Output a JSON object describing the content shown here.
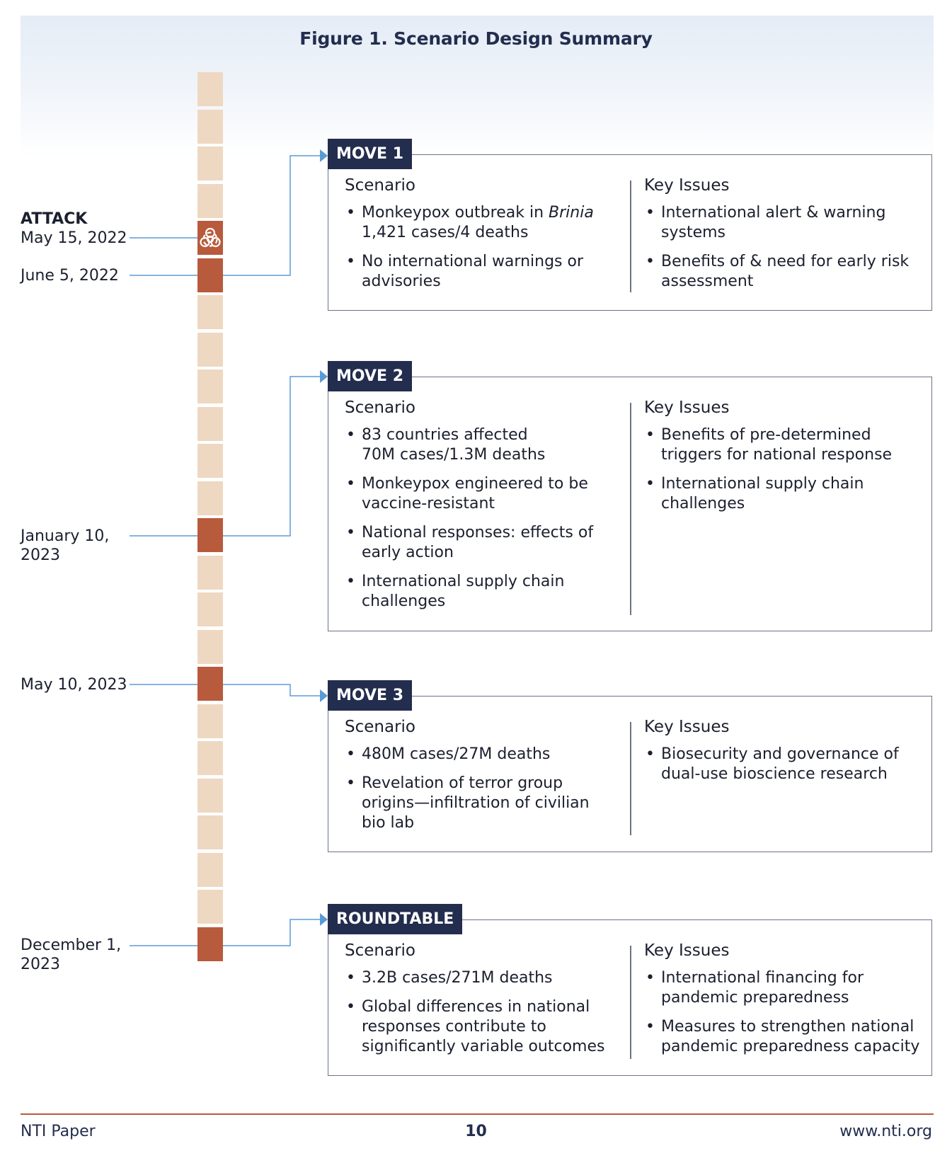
{
  "figure": {
    "title": "Figure 1. Scenario Design Summary"
  },
  "timeline": {
    "events": [
      {
        "label_line1": "ATTACK",
        "label_line2": "May 15, 2022"
      },
      {
        "label_line1": "June 5, 2022",
        "label_line2": ""
      },
      {
        "label_line1": "January 10,",
        "label_line2": "2023"
      },
      {
        "label_line1": "May 10, 2023",
        "label_line2": ""
      },
      {
        "label_line1": "December 1,",
        "label_line2": "2023"
      }
    ],
    "attack_icon": "biohazard-icon",
    "colors": {
      "segment": "#eed8c2",
      "active": "#b85a3c",
      "connector": "#5b9bd5"
    }
  },
  "moves": [
    {
      "tag": "MOVE 1",
      "scenario_heading": "Scenario",
      "scenario": [
        {
          "pre": "Monkeypox outbreak in ",
          "em": "Brinia",
          "rest": "1,421 cases/4 deaths"
        },
        {
          "pre": "No international warnings or",
          "em": "",
          "rest": "advisories"
        }
      ],
      "issues_heading": "Key Issues",
      "issues": [
        {
          "line1": "International alert & warning",
          "line2": "systems"
        },
        {
          "line1": "Benefits of & need for early risk",
          "line2": "assessment"
        }
      ]
    },
    {
      "tag": "MOVE 2",
      "scenario_heading": "Scenario",
      "scenario": [
        {
          "pre": "83 countries affected",
          "em": "",
          "rest": "70M cases/1.3M deaths"
        },
        {
          "pre": "Monkeypox engineered to be",
          "em": "",
          "rest": "vaccine-resistant"
        },
        {
          "pre": "National responses: effects of",
          "em": "",
          "rest": "early action"
        },
        {
          "pre": "International supply chain",
          "em": "",
          "rest": "challenges"
        }
      ],
      "issues_heading": "Key Issues",
      "issues": [
        {
          "line1": "Benefits of pre-determined",
          "line2": "triggers for national response"
        },
        {
          "line1": "International supply chain",
          "line2": "challenges"
        }
      ]
    },
    {
      "tag": "MOVE 3",
      "scenario_heading": "Scenario",
      "scenario": [
        {
          "pre": "480M cases/27M deaths",
          "em": "",
          "rest": ""
        },
        {
          "pre": "Revelation of terror group",
          "em": "",
          "rest": "origins—infiltration of civilian",
          "rest2": "bio lab"
        }
      ],
      "issues_heading": "Key Issues",
      "issues": [
        {
          "line1": "Biosecurity and governance of",
          "line2": "dual-use bioscience research"
        }
      ]
    },
    {
      "tag": "ROUNDTABLE",
      "scenario_heading": "Scenario",
      "scenario": [
        {
          "pre": "3.2B cases/271M deaths",
          "em": "",
          "rest": ""
        },
        {
          "pre": "Global differences in national",
          "em": "",
          "rest": "responses contribute to",
          "rest2": "significantly variable outcomes"
        }
      ],
      "issues_heading": "Key Issues",
      "issues": [
        {
          "line1": "International financing for",
          "line2": "pandemic preparedness"
        },
        {
          "line1": "Measures to strengthen national",
          "line2": "pandemic preparedness capacity"
        }
      ]
    }
  ],
  "footer": {
    "left": "NTI Paper",
    "page": "10",
    "right": "www.nti.org"
  }
}
